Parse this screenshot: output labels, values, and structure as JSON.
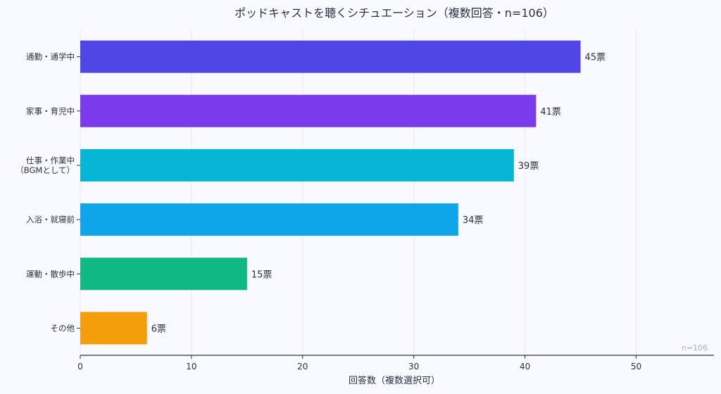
{
  "chart_data": {
    "type": "bar",
    "orientation": "horizontal",
    "title": "ポッドキャストを聴くシチュエーション（複数回答・n=106）",
    "xlabel": "回答数（複数選択可）",
    "ylabel": "",
    "categories": [
      "通勤・通学中",
      "家事・育児中",
      "仕事・作業中\n（BGMとして）",
      "入浴・就寝前",
      "運動・散歩中",
      "その他"
    ],
    "values": [
      45,
      41,
      39,
      34,
      15,
      6
    ],
    "value_suffix": "票",
    "colors": [
      "#4f46e5",
      "#7c3aed",
      "#06b6d4",
      "#0ea5e9",
      "#10b981",
      "#f59e0b"
    ],
    "xlim": [
      0,
      57
    ],
    "xticks": [
      0,
      10,
      20,
      30,
      40,
      50
    ],
    "grid": true,
    "annotation": "n=106"
  }
}
